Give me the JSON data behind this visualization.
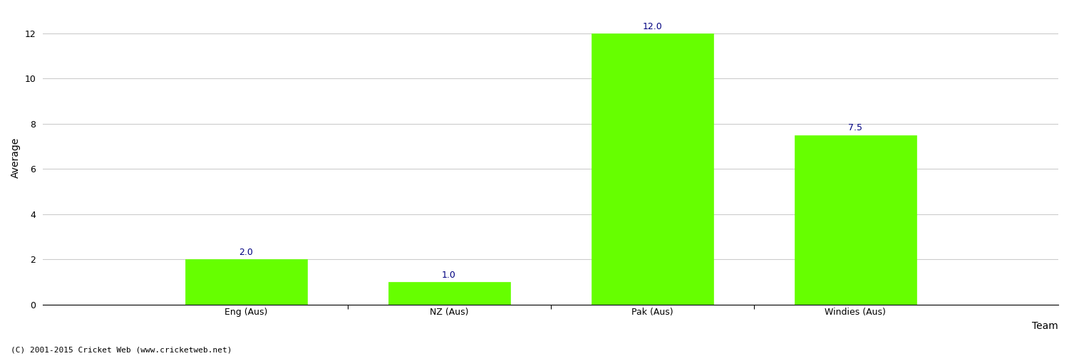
{
  "categories": [
    "Eng (Aus)",
    "NZ (Aus)",
    "Pak (Aus)",
    "Windies (Aus)"
  ],
  "values": [
    2.0,
    1.0,
    12.0,
    7.5
  ],
  "bar_color": "#66ff00",
  "bar_edge_color": "#66ff00",
  "xlabel": "Team",
  "ylabel": "Average",
  "ylim": [
    0,
    13
  ],
  "yticks": [
    0,
    2,
    4,
    6,
    8,
    10,
    12
  ],
  "annotation_color": "#000080",
  "annotation_fontsize": 9,
  "grid_color": "#cccccc",
  "background_color": "#ffffff",
  "copyright_text": "(C) 2001-2015 Cricket Web (www.cricketweb.net)",
  "copyright_fontsize": 8,
  "axis_label_fontsize": 10,
  "tick_fontsize": 9,
  "bar_width": 0.6,
  "xlim": [
    -0.5,
    4.5
  ]
}
